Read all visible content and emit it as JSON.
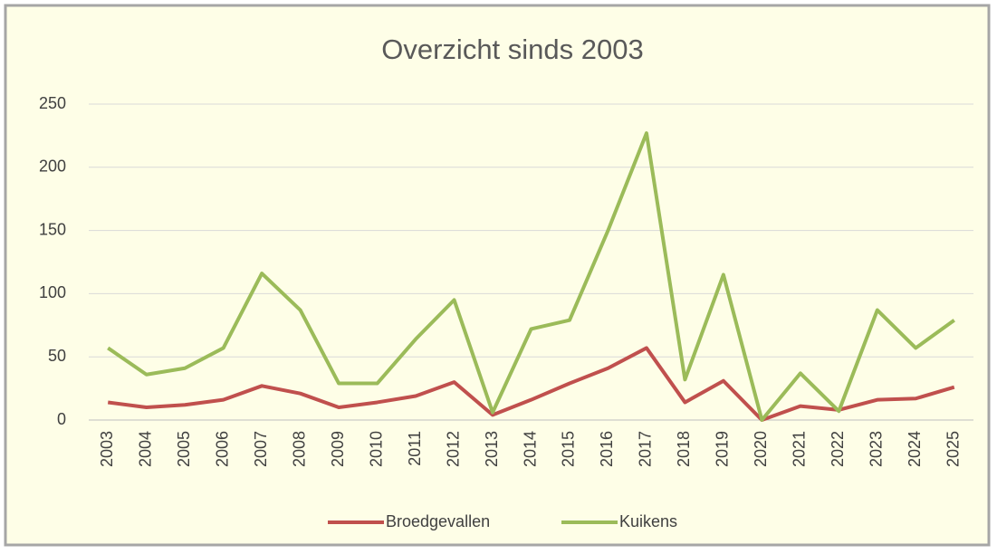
{
  "chart_data": {
    "type": "line",
    "title": "Overzicht sinds 2003",
    "categories": [
      "2003",
      "2004",
      "2005",
      "2006",
      "2007",
      "2008",
      "2009",
      "2010",
      "2011",
      "2012",
      "2013",
      "2014",
      "2015",
      "2016",
      "2017",
      "2018",
      "2019",
      "2020",
      "2021",
      "2022",
      "2023",
      "2024",
      "2025"
    ],
    "series": [
      {
        "name": "Broedgevallen",
        "color": "#c0504d",
        "values": [
          14,
          10,
          12,
          16,
          27,
          21,
          10,
          14,
          19,
          30,
          4,
          16,
          29,
          41,
          57,
          14,
          31,
          0,
          11,
          8,
          16,
          17,
          26
        ]
      },
      {
        "name": "Kuikens",
        "color": "#9bbb59",
        "values": [
          57,
          36,
          41,
          57,
          116,
          87,
          29,
          29,
          64,
          95,
          6,
          72,
          79,
          150,
          227,
          32,
          115,
          0,
          37,
          7,
          87,
          57,
          79
        ]
      }
    ],
    "ylim": [
      0,
      250
    ],
    "yticks": [
      0,
      50,
      100,
      150,
      200,
      250
    ],
    "grid": true,
    "legend": "bottom"
  }
}
